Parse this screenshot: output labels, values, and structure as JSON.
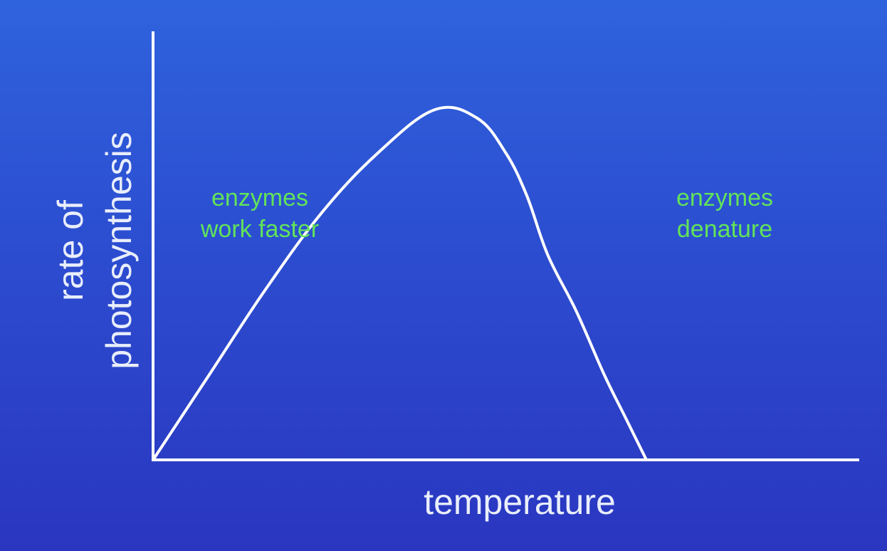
{
  "chart_data": {
    "type": "line",
    "title": "",
    "xlabel": "temperature",
    "ylabel_lines": [
      "rate of",
      "photosynthesis"
    ],
    "axes": {
      "ticks": false,
      "grid": false
    },
    "xlim": [
      0,
      100
    ],
    "ylim": [
      0,
      100
    ],
    "series": [
      {
        "x": [
          0,
          8,
          16,
          24,
          32,
          40,
          46,
          50,
          53,
          56,
          60,
          64,
          67,
          70,
          72,
          74,
          75.5,
          76.5
        ],
        "values": [
          0,
          20,
          40,
          58,
          72,
          82,
          80,
          72,
          62,
          48,
          35,
          20,
          10,
          0,
          0,
          0,
          0,
          0
        ]
      }
    ],
    "annotations": [
      {
        "lines": [
          "enzymes",
          "work faster"
        ],
        "color": "#62e35a"
      },
      {
        "lines": [
          "enzymes",
          "denature"
        ],
        "color": "#62e35a"
      }
    ]
  }
}
